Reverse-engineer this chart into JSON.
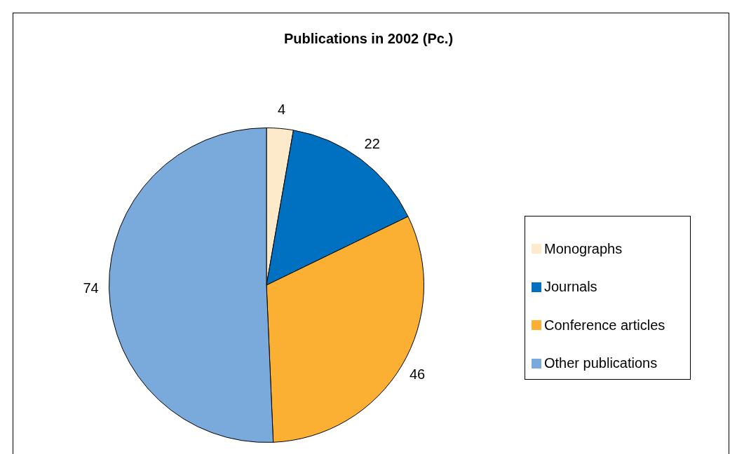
{
  "chart_data": {
    "type": "pie",
    "title": "Publications in 2002 (Pc.)",
    "categories": [
      "Monographs",
      "Journals",
      "Conference articles",
      "Other publications"
    ],
    "values": [
      4,
      22,
      46,
      74
    ],
    "colors": [
      "#fdeacb",
      "#0070c0",
      "#fbb034",
      "#7aaadc"
    ],
    "data_labels": true,
    "legend": "right"
  }
}
